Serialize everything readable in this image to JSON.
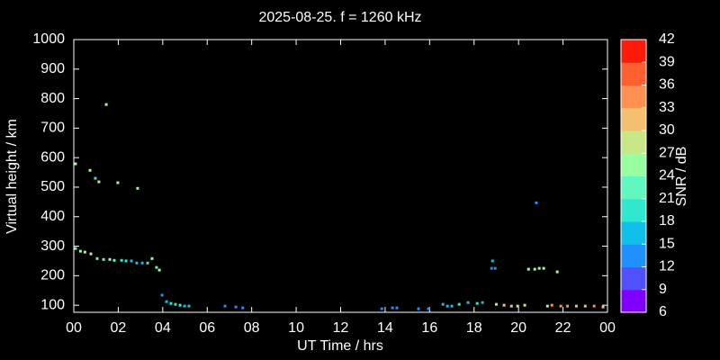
{
  "chart_data": {
    "type": "scatter",
    "title": "2025-08-25. f = 1260 kHz",
    "xlabel": "UT Time / hrs",
    "ylabel": "Virtual height / km",
    "xlim": [
      0,
      24
    ],
    "xticks": [
      {
        "value": 0,
        "label": "00"
      },
      {
        "value": 2,
        "label": "02"
      },
      {
        "value": 4,
        "label": "04"
      },
      {
        "value": 6,
        "label": "06"
      },
      {
        "value": 8,
        "label": "08"
      },
      10,
      12,
      14,
      16,
      18,
      20,
      22,
      {
        "value": 24,
        "label": "00"
      }
    ],
    "ylim": [
      76,
      1000
    ],
    "yticks": [
      100,
      200,
      300,
      400,
      500,
      600,
      700,
      800,
      900,
      1000
    ],
    "points": {
      "x": [
        0.08,
        0.08,
        0.3,
        0.5,
        0.77,
        0.73,
        0.97,
        1.13,
        1.05,
        1.34,
        1.46,
        1.62,
        1.82,
        1.98,
        2.15,
        2.35,
        2.59,
        2.83,
        2.87,
        3.08,
        3.32,
        3.52,
        3.72,
        3.85,
        3.97,
        4.17,
        4.37,
        4.57,
        4.78,
        4.98,
        5.18,
        6.8,
        7.29,
        7.6,
        13.85,
        14.33,
        14.53,
        15.5,
        15.95,
        16.6,
        16.8,
        17.0,
        17.33,
        17.73,
        18.14,
        18.38,
        18.83,
        18.79,
        18.95,
        19.0,
        19.35,
        19.68,
        19.96,
        20.28,
        20.45,
        20.73,
        20.8,
        20.93,
        21.13,
        21.3,
        21.5,
        21.74,
        21.9,
        22.2,
        22.6,
        23.0,
        23.4,
        23.8
      ],
      "y": [
        579,
        292,
        283,
        280,
        274,
        557,
        530,
        518,
        258,
        255,
        780,
        255,
        252,
        515,
        252,
        250,
        250,
        243,
        496,
        243,
        243,
        258,
        228,
        219,
        134,
        112,
        106,
        103,
        100,
        97,
        97,
        97,
        94,
        91,
        88,
        91,
        91,
        88,
        88,
        103,
        97,
        97,
        103,
        109,
        106,
        109,
        250,
        225,
        225,
        103,
        100,
        97,
        97,
        100,
        222,
        222,
        447,
        225,
        225,
        97,
        100,
        213,
        97,
        97,
        97,
        97,
        97,
        94
      ],
      "snr": [
        25,
        22,
        26,
        27,
        27,
        24,
        18,
        27,
        23,
        23,
        25,
        24,
        22,
        25,
        20,
        19,
        16,
        15,
        25,
        16,
        18,
        24,
        22,
        24,
        13,
        17,
        18,
        19,
        19,
        17,
        16,
        13,
        13,
        12,
        12,
        12,
        13,
        12,
        12,
        16,
        16,
        17,
        19,
        17,
        19,
        16,
        17,
        14,
        14,
        27,
        30,
        32,
        28,
        29,
        24,
        24,
        13,
        24,
        24,
        26,
        33,
        25,
        33,
        34,
        32,
        32,
        33,
        31
      ]
    },
    "colorbar": {
      "label": "SNR / dB",
      "lim": [
        6,
        42
      ],
      "ticks": [
        6,
        9,
        12,
        15,
        18,
        21,
        24,
        27,
        30,
        33,
        36,
        39,
        42
      ],
      "colors": [
        "#8000ff",
        "#5050ff",
        "#2090ff",
        "#10c0e8",
        "#30e8d0",
        "#60f8c0",
        "#98ffa0",
        "#c8e888",
        "#f4c070",
        "#ff9050",
        "#ff6030",
        "#ff1a0a"
      ]
    }
  }
}
